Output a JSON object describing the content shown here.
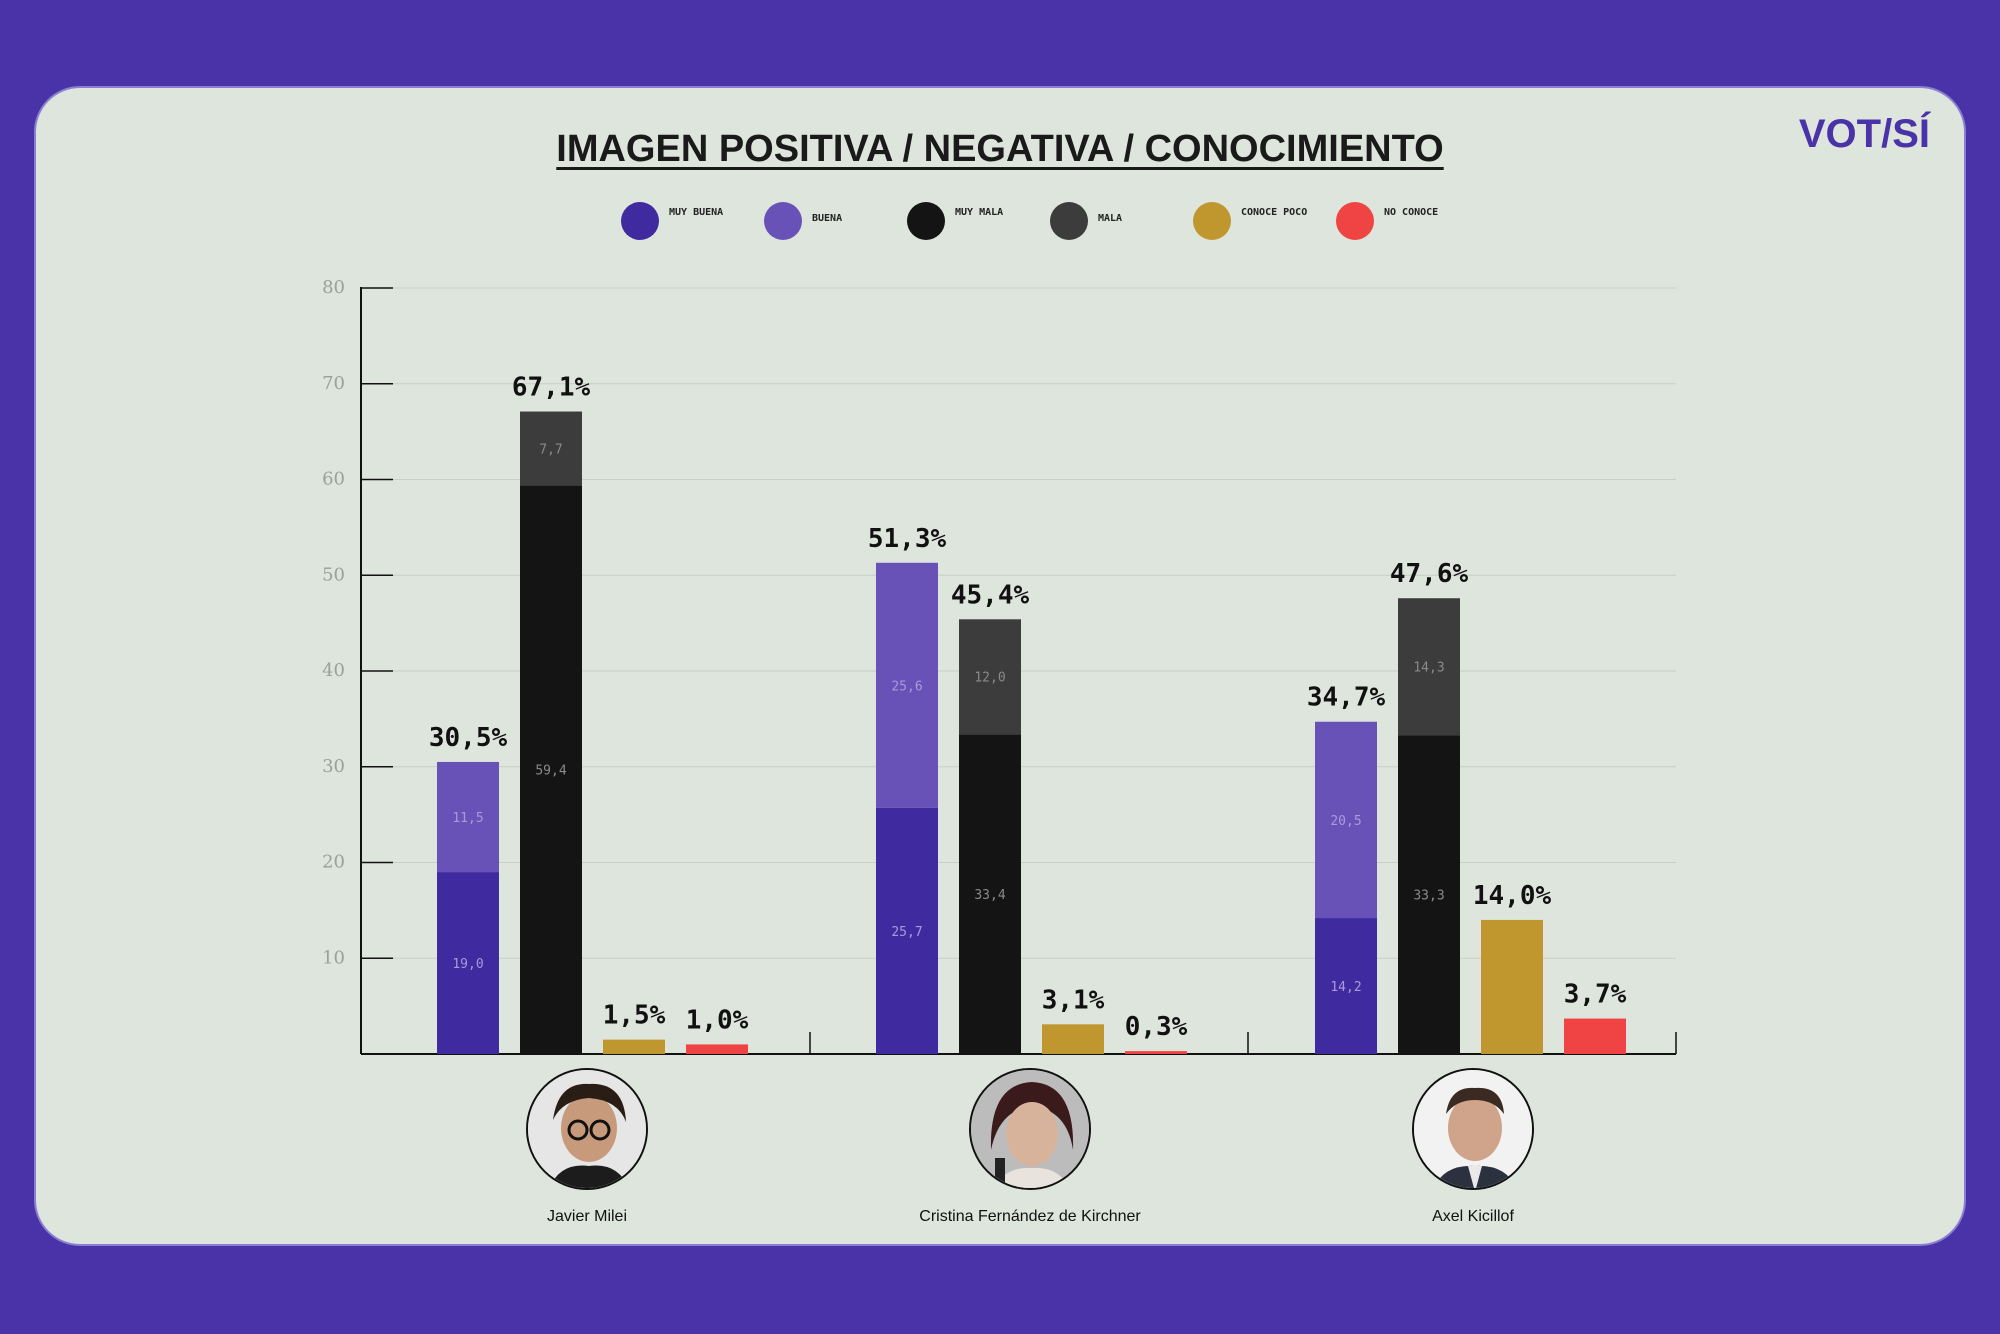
{
  "title": "IMAGEN POSITIVA / NEGATIVA / CONOCIMIENTO",
  "logo": {
    "text": "VOT/SÍ",
    "color": "#4a33a8"
  },
  "legend": [
    {
      "label": "MUY BUENA",
      "color": "#3f2aa0"
    },
    {
      "label": "BUENA",
      "color": "#6852b8"
    },
    {
      "label": "MUY MALA",
      "color": "#141414"
    },
    {
      "label": "MALA",
      "color": "#3c3c3c"
    },
    {
      "label": "CONOCE POCO",
      "color": "#c0962e"
    },
    {
      "label": "NO CONOCE",
      "color": "#f04444"
    }
  ],
  "people": [
    {
      "name": "Javier Milei"
    },
    {
      "name": "Cristina Fernández de Kirchner"
    },
    {
      "name": "Axel Kicillof"
    }
  ],
  "chart_data": {
    "type": "bar",
    "title": "IMAGEN POSITIVA / NEGATIVA / CONOCIMIENTO",
    "ylim": [
      0,
      80
    ],
    "yticks": [
      10,
      20,
      30,
      40,
      50,
      60,
      70,
      80
    ],
    "grid": true,
    "legend_position": "top-center",
    "categories": [
      "Javier Milei",
      "Cristina Fernández de Kirchner",
      "Axel Kicillof"
    ],
    "groups": [
      {
        "candidate": "Javier Milei",
        "bars": [
          {
            "kind": "positive",
            "total": 30.5,
            "total_label": "30,5%",
            "segments": [
              {
                "series": "MUY BUENA",
                "value": 19.0,
                "label": "19,0"
              },
              {
                "series": "BUENA",
                "value": 11.5,
                "label": "11,5"
              }
            ]
          },
          {
            "kind": "negative",
            "total": 67.1,
            "total_label": "67,1%",
            "segments": [
              {
                "series": "MUY MALA",
                "value": 59.4,
                "label": "59,4"
              },
              {
                "series": "MALA",
                "value": 7.7,
                "label": "7,7"
              }
            ]
          },
          {
            "kind": "conoce_poco",
            "total": 1.5,
            "total_label": "1,5%",
            "segments": [
              {
                "series": "CONOCE POCO",
                "value": 1.5,
                "label": ""
              }
            ]
          },
          {
            "kind": "no_conoce",
            "total": 1.0,
            "total_label": "1,0%",
            "segments": [
              {
                "series": "NO CONOCE",
                "value": 1.0,
                "label": ""
              }
            ]
          }
        ]
      },
      {
        "candidate": "Cristina Fernández de Kirchner",
        "bars": [
          {
            "kind": "positive",
            "total": 51.3,
            "total_label": "51,3%",
            "segments": [
              {
                "series": "MUY BUENA",
                "value": 25.7,
                "label": "25,7"
              },
              {
                "series": "BUENA",
                "value": 25.6,
                "label": "25,6"
              }
            ]
          },
          {
            "kind": "negative",
            "total": 45.4,
            "total_label": "45,4%",
            "segments": [
              {
                "series": "MUY MALA",
                "value": 33.4,
                "label": "33,4"
              },
              {
                "series": "MALA",
                "value": 12.0,
                "label": "12,0"
              }
            ]
          },
          {
            "kind": "conoce_poco",
            "total": 3.1,
            "total_label": "3,1%",
            "segments": [
              {
                "series": "CONOCE POCO",
                "value": 3.1,
                "label": ""
              }
            ]
          },
          {
            "kind": "no_conoce",
            "total": 0.3,
            "total_label": "0,3%",
            "segments": [
              {
                "series": "NO CONOCE",
                "value": 0.3,
                "label": ""
              }
            ]
          }
        ]
      },
      {
        "candidate": "Axel Kicillof",
        "bars": [
          {
            "kind": "positive",
            "total": 34.7,
            "total_label": "34,7%",
            "segments": [
              {
                "series": "MUY BUENA",
                "value": 14.2,
                "label": "14,2"
              },
              {
                "series": "BUENA",
                "value": 20.5,
                "label": "20,5"
              }
            ]
          },
          {
            "kind": "negative",
            "total": 47.6,
            "total_label": "47,6%",
            "segments": [
              {
                "series": "MUY MALA",
                "value": 33.3,
                "label": "33,3"
              },
              {
                "series": "MALA",
                "value": 14.3,
                "label": "14,3"
              }
            ]
          },
          {
            "kind": "conoce_poco",
            "total": 14.0,
            "total_label": "14,0%",
            "segments": [
              {
                "series": "CONOCE POCO",
                "value": 14.0,
                "label": ""
              }
            ]
          },
          {
            "kind": "no_conoce",
            "total": 3.7,
            "total_label": "3,7%",
            "segments": [
              {
                "series": "NO CONOCE",
                "value": 3.7,
                "label": ""
              }
            ]
          }
        ]
      }
    ]
  }
}
